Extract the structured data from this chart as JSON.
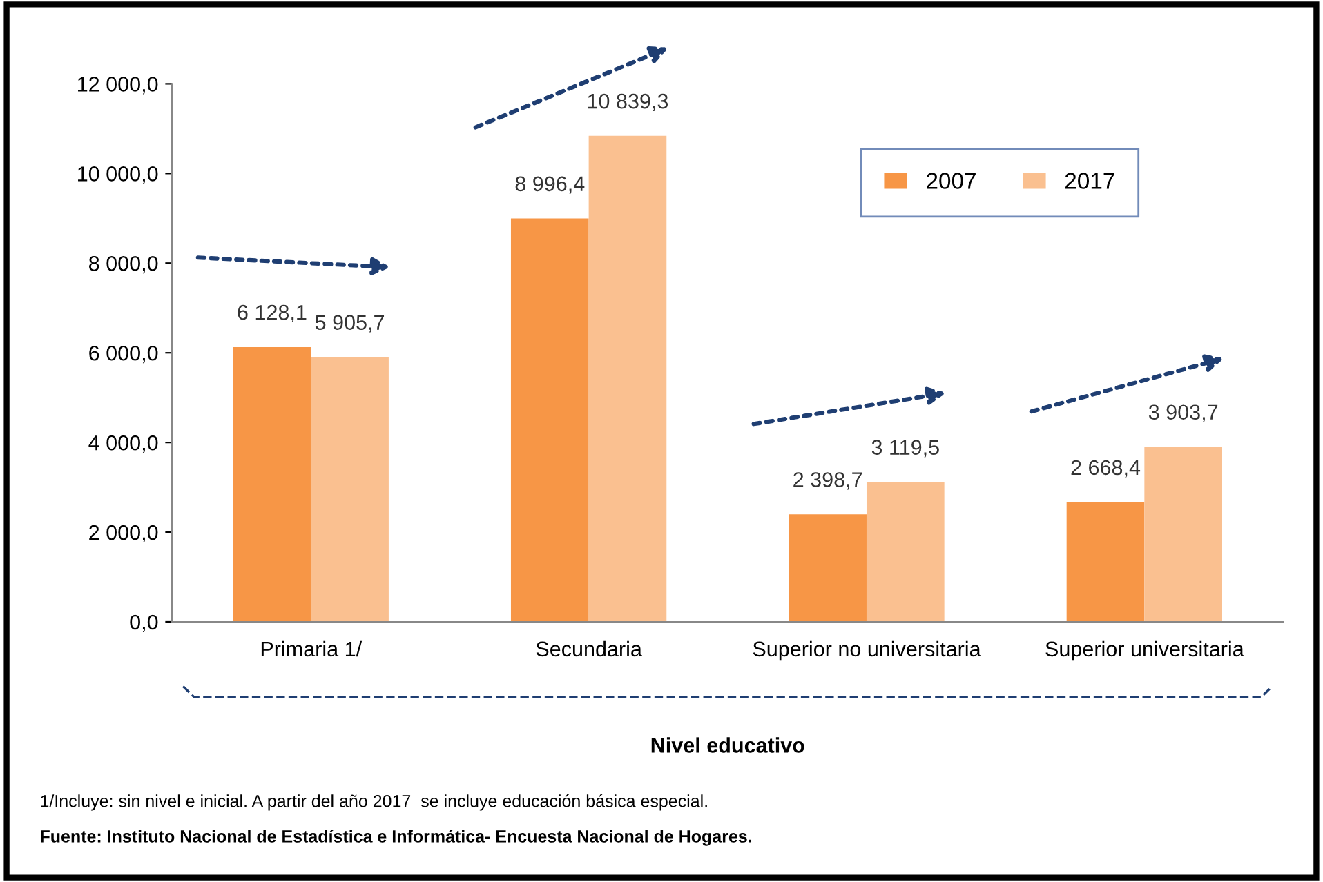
{
  "chart_data": {
    "type": "bar",
    "categories": [
      "Primaria 1/",
      "Secundaria",
      "Superior no universitaria",
      "Superior universitaria"
    ],
    "series": [
      {
        "name": "2007",
        "color": "#f79646",
        "values": [
          6128.1,
          8996.4,
          2398.7,
          2668.4
        ],
        "value_labels": [
          "6 128,1",
          "8 996,4",
          "2 398,7",
          "2 668,4"
        ]
      },
      {
        "name": "2017",
        "color": "#fac090",
        "values": [
          5905.7,
          10839.3,
          3119.5,
          3903.7
        ],
        "value_labels": [
          "5 905,7",
          "10 839,3",
          "3 119,5",
          "3 903,7"
        ]
      }
    ],
    "xlabel": "Nivel educativo",
    "ylim": [
      0,
      12000
    ],
    "yticks": [
      {
        "value": 0,
        "label": "0,0"
      },
      {
        "value": 2000,
        "label": "2 000,0"
      },
      {
        "value": 4000,
        "label": "4 000,0"
      },
      {
        "value": 6000,
        "label": "6 000,0"
      },
      {
        "value": 8000,
        "label": "8 000,0"
      },
      {
        "value": 10000,
        "label": "10 000,0"
      },
      {
        "value": 12000,
        "label": "12 000,0"
      }
    ],
    "grid": false,
    "legend": "top right",
    "annotations": [
      "1/Incluye: sin nivel e inicial. A partir del año 2017  se incluye educación básica especial.",
      "Fuente: Instituto Nacional de Estadística e Informática- Encuesta Nacional de Hogares."
    ]
  }
}
